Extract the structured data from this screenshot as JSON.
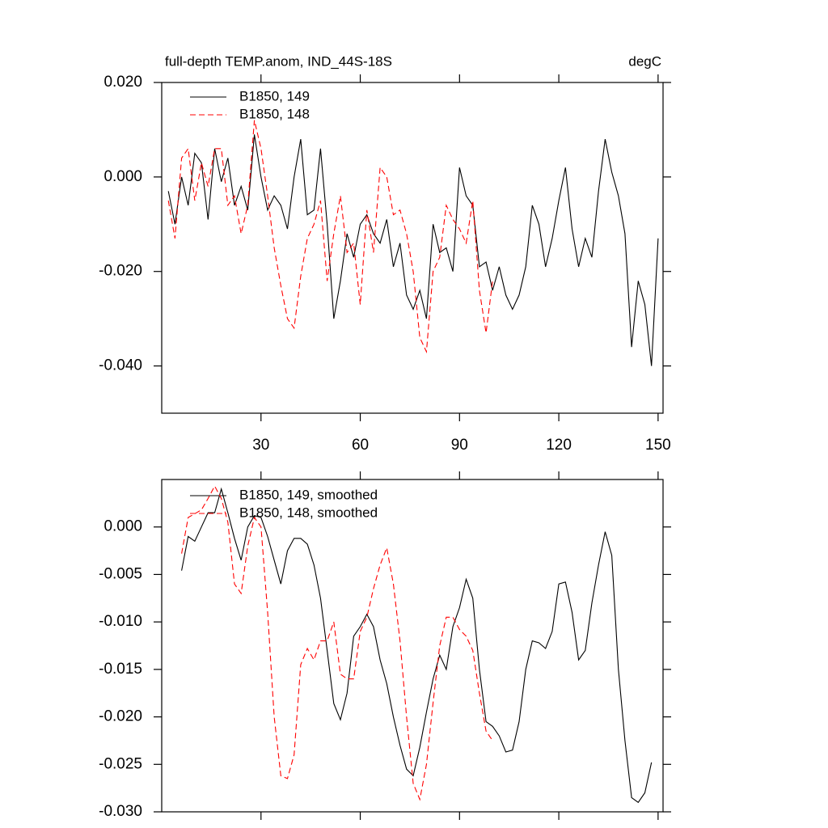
{
  "chart_data": [
    {
      "type": "line",
      "title": "full-depth TEMP.anom, IND_44S-18S",
      "units_label": "degC",
      "x": [
        2,
        4,
        6,
        8,
        10,
        12,
        14,
        16,
        18,
        20,
        22,
        24,
        26,
        28,
        30,
        32,
        34,
        36,
        38,
        40,
        42,
        44,
        46,
        48,
        50,
        52,
        54,
        56,
        58,
        60,
        62,
        64,
        66,
        68,
        70,
        72,
        74,
        76,
        78,
        80,
        82,
        84,
        86,
        88,
        90,
        92,
        94,
        96,
        98,
        100,
        102,
        104,
        106,
        108,
        110,
        112,
        114,
        116,
        118,
        120,
        122,
        124,
        126,
        128,
        130,
        132,
        134,
        136,
        138,
        140,
        142,
        144,
        146,
        148,
        150
      ],
      "series": [
        {
          "name": "B1850, 149",
          "color": "#000000",
          "dash": false,
          "values": [
            -0.003,
            -0.01,
            0.0,
            -0.006,
            0.005,
            0.003,
            -0.009,
            0.006,
            -0.001,
            0.004,
            -0.006,
            -0.002,
            -0.007,
            0.009,
            0.0,
            -0.007,
            -0.004,
            -0.006,
            -0.011,
            0.0,
            0.008,
            -0.008,
            -0.007,
            0.006,
            -0.01,
            -0.03,
            -0.022,
            -0.012,
            -0.017,
            -0.01,
            -0.008,
            -0.012,
            -0.014,
            -0.009,
            -0.019,
            -0.014,
            -0.025,
            -0.028,
            -0.024,
            -0.03,
            -0.01,
            -0.016,
            -0.015,
            -0.02,
            0.002,
            -0.004,
            -0.006,
            -0.019,
            -0.018,
            -0.024,
            -0.019,
            -0.025,
            -0.028,
            -0.025,
            -0.019,
            -0.006,
            -0.01,
            -0.019,
            -0.013,
            -0.005,
            0.002,
            -0.011,
            -0.019,
            -0.013,
            -0.017,
            -0.003,
            0.008,
            0.001,
            -0.004,
            -0.012,
            -0.036,
            -0.022,
            -0.027,
            -0.04,
            -0.013
          ]
        },
        {
          "name": "B1850, 148",
          "color": "#ff0000",
          "dash": true,
          "values": [
            -0.005,
            -0.013,
            0.004,
            0.006,
            -0.005,
            0.003,
            -0.002,
            0.006,
            0.006,
            -0.006,
            -0.004,
            -0.012,
            -0.006,
            0.012,
            0.006,
            -0.004,
            -0.015,
            -0.023,
            -0.03,
            -0.032,
            -0.021,
            -0.013,
            -0.01,
            -0.005,
            -0.022,
            -0.012,
            -0.004,
            -0.016,
            -0.014,
            -0.027,
            -0.007,
            -0.016,
            0.002,
            0.0,
            -0.008,
            -0.007,
            -0.012,
            -0.02,
            -0.034,
            -0.037,
            -0.02,
            -0.017,
            -0.006,
            -0.009,
            -0.011,
            -0.014,
            -0.005,
            -0.024,
            -0.033,
            -0.022,
            null,
            null,
            null,
            null,
            null,
            null,
            null,
            null,
            null,
            null,
            null,
            null,
            null,
            null,
            null,
            null,
            null,
            null,
            null,
            null,
            null,
            null,
            null,
            null,
            null
          ]
        }
      ],
      "xlim": [
        0,
        151.5
      ],
      "xticks": [
        30,
        60,
        90,
        120,
        150
      ],
      "xtick_labels": true,
      "ylim": [
        -0.05,
        0.02
      ],
      "yticks": [
        {
          "value": 0.02,
          "label": "0.020"
        },
        {
          "value": 0,
          "label": "0.000"
        },
        {
          "value": -0.02,
          "label": "-0.020"
        },
        {
          "value": -0.04,
          "label": "-0.040"
        }
      ]
    },
    {
      "type": "line",
      "x": [
        6,
        8,
        10,
        12,
        14,
        16,
        18,
        20,
        22,
        24,
        26,
        28,
        30,
        32,
        34,
        36,
        38,
        40,
        42,
        44,
        46,
        48,
        50,
        52,
        54,
        56,
        58,
        60,
        62,
        64,
        66,
        68,
        70,
        72,
        74,
        76,
        78,
        80,
        82,
        84,
        86,
        88,
        90,
        92,
        94,
        96,
        98,
        100,
        102,
        104,
        106,
        108,
        110,
        112,
        114,
        116,
        118,
        120,
        122,
        124,
        126,
        128,
        130,
        132,
        134,
        136,
        138,
        140,
        142,
        144,
        146,
        148
      ],
      "series": [
        {
          "name": "B1850, 149, smoothed",
          "color": "#000000",
          "dash": false,
          "values": [
            -0.0046,
            -0.001,
            -0.0015,
            0.0,
            0.0015,
            0.0015,
            0.004,
            0.0015,
            -0.0012,
            -0.0035,
            0.0,
            0.0012,
            0.001,
            -0.001,
            -0.0035,
            -0.006,
            -0.0025,
            -0.0012,
            -0.0012,
            -0.0018,
            -0.004,
            -0.0075,
            -0.013,
            -0.0186,
            -0.0203,
            -0.0175,
            -0.0115,
            -0.0105,
            -0.0092,
            -0.0105,
            -0.014,
            -0.0165,
            -0.02,
            -0.023,
            -0.0255,
            -0.0262,
            -0.0232,
            -0.0195,
            -0.016,
            -0.0135,
            -0.015,
            -0.0105,
            -0.0085,
            -0.0055,
            -0.0075,
            -0.015,
            -0.0205,
            -0.021,
            -0.022,
            -0.0237,
            -0.0235,
            -0.0205,
            -0.015,
            -0.012,
            -0.0122,
            -0.0128,
            -0.011,
            -0.006,
            -0.0058,
            -0.009,
            -0.014,
            -0.013,
            -0.008,
            -0.004,
            -0.0005,
            -0.003,
            -0.015,
            -0.0225,
            -0.0285,
            -0.029,
            -0.028,
            -0.0248
          ]
        },
        {
          "name": "B1850, 148, smoothed",
          "color": "#ff0000",
          "dash": true,
          "values": [
            -0.0028,
            0.001,
            0.0014,
            0.0018,
            0.003,
            0.0043,
            0.003,
            0.0005,
            -0.006,
            -0.007,
            -0.002,
            0.001,
            0.0,
            -0.009,
            -0.02,
            -0.0262,
            -0.0265,
            -0.024,
            -0.0145,
            -0.0128,
            -0.014,
            -0.012,
            -0.012,
            -0.01,
            -0.0155,
            -0.016,
            -0.016,
            -0.011,
            -0.0095,
            -0.0065,
            -0.004,
            -0.0022,
            -0.006,
            -0.012,
            -0.02,
            -0.027,
            -0.0287,
            -0.025,
            -0.0185,
            -0.0125,
            -0.0095,
            -0.0095,
            -0.0108,
            -0.0115,
            -0.013,
            -0.0175,
            -0.0215,
            -0.0225,
            null,
            null,
            null,
            null,
            null,
            null,
            null,
            null,
            null,
            null,
            null,
            null,
            null,
            null,
            null,
            null,
            null,
            null,
            null,
            null,
            null,
            null,
            null,
            null
          ]
        }
      ],
      "xlim": [
        0,
        151.5
      ],
      "xticks": [
        30,
        60,
        90,
        120,
        150
      ],
      "xtick_labels": false,
      "ylim": [
        -0.03,
        0.005
      ],
      "yticks": [
        {
          "value": 0,
          "label": "0.000"
        },
        {
          "value": -0.005,
          "label": "-0.005"
        },
        {
          "value": -0.01,
          "label": "-0.010"
        },
        {
          "value": -0.015,
          "label": "-0.015"
        },
        {
          "value": -0.02,
          "label": "-0.020"
        },
        {
          "value": -0.025,
          "label": "-0.025"
        },
        {
          "value": -0.03,
          "label": "-0.030"
        }
      ]
    }
  ]
}
